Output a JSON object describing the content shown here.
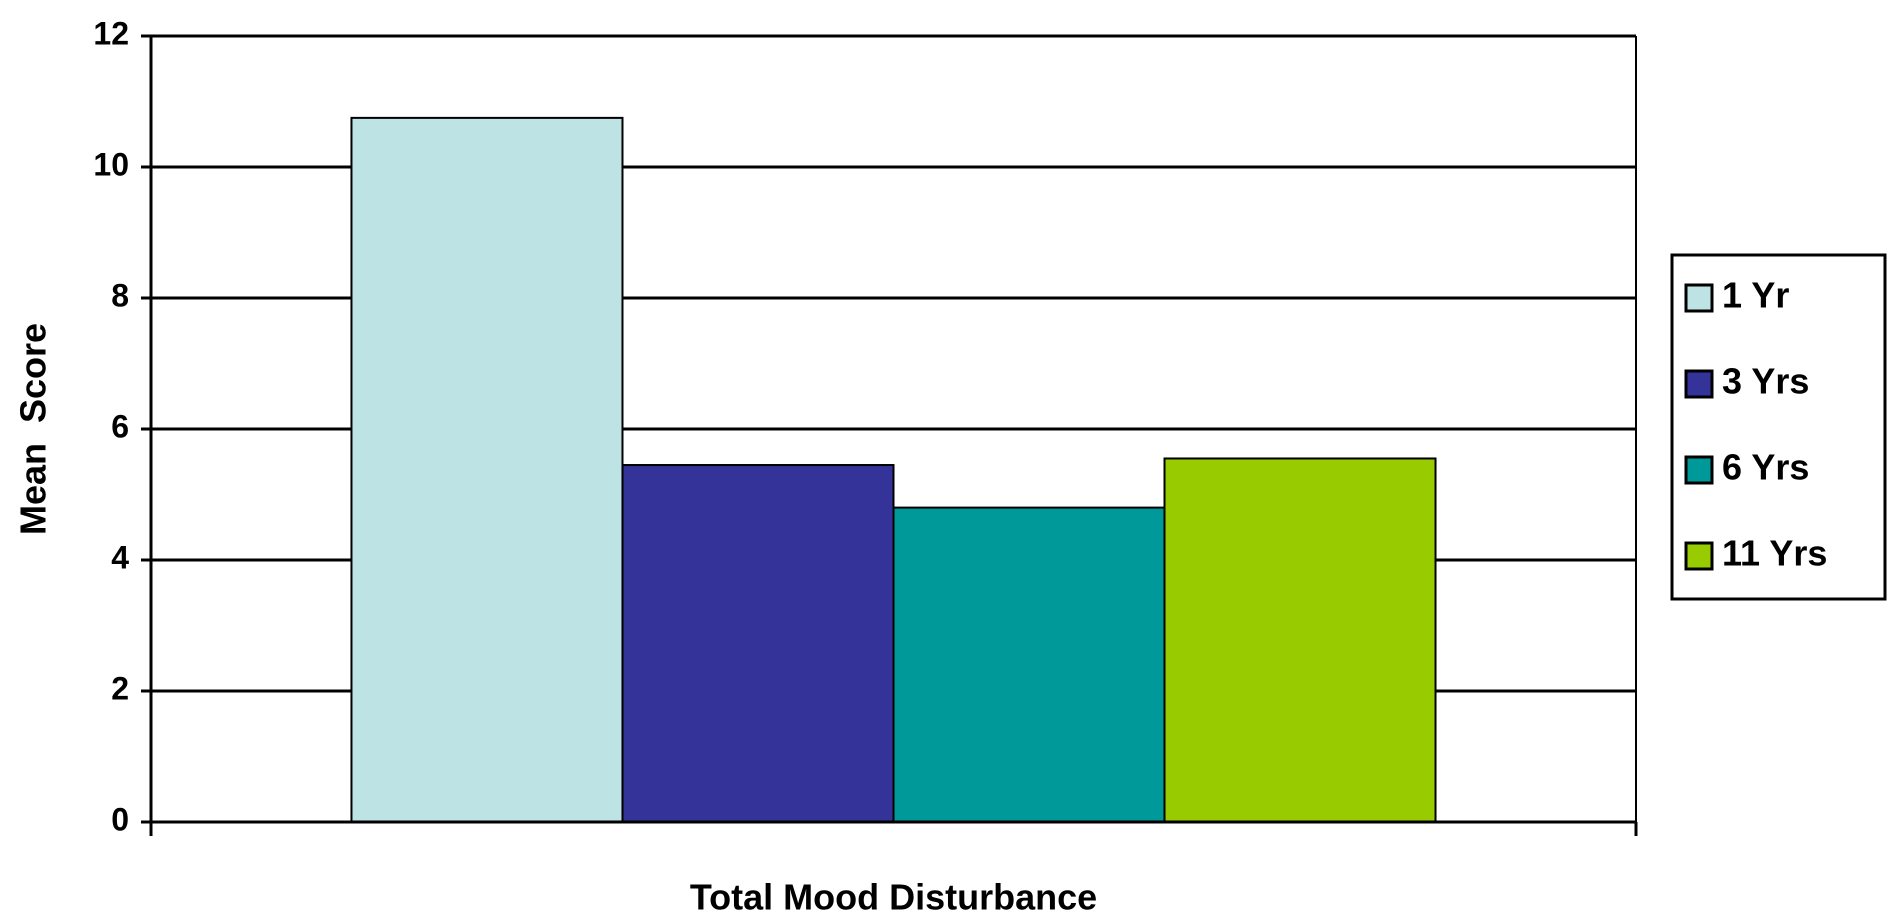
{
  "chart_data": {
    "type": "bar",
    "categories": [
      "Total Mood Disturbance"
    ],
    "series": [
      {
        "name": "1 Yr",
        "color": "#bde3e5",
        "values": [
          10.75
        ]
      },
      {
        "name": "3 Yrs",
        "color": "#333399",
        "values": [
          5.45
        ]
      },
      {
        "name": "6 Yrs",
        "color": "#009999",
        "values": [
          4.8
        ]
      },
      {
        "name": "11 Yrs",
        "color": "#99cc00",
        "values": [
          5.55
        ]
      }
    ],
    "y_label": "Mean  Score",
    "ylim": [
      0,
      12
    ],
    "yticks": [
      0,
      2,
      4,
      6,
      8,
      10,
      12
    ],
    "grid": true,
    "legend": "right"
  }
}
